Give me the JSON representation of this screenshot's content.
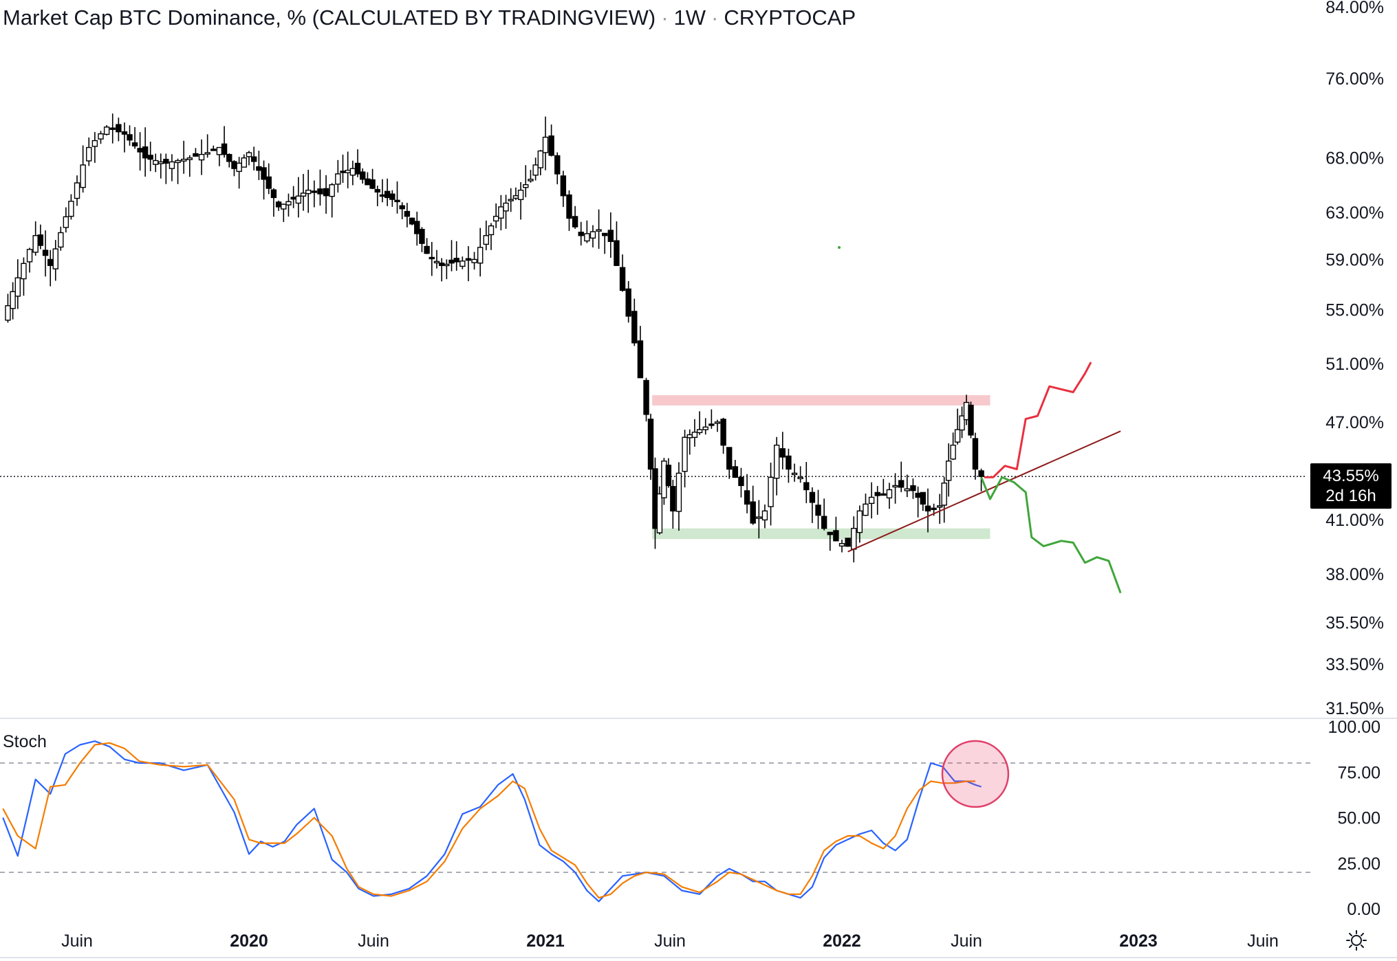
{
  "header": {
    "title": "Market Cap BTC Dominance, % (CALCULATED BY TRADINGVIEW)",
    "interval": "1W",
    "exchange": "CRYPTOCAP"
  },
  "price_badge": {
    "value": "43.55%",
    "countdown": "2d 16h"
  },
  "indicator": {
    "name": "Stoch"
  },
  "colors": {
    "candle": "#000000",
    "resistance_zone": "#f7c9cc",
    "support_zone": "#cfe8cf",
    "trendline": "#8b1a1a",
    "bull_path": "#e8303f",
    "bear_path": "#3fa63a",
    "stoch_k": "#2962ff",
    "stoch_d": "#f57c00",
    "highlight_circle": "#e0406a"
  },
  "chart_data": [
    {
      "type": "candlestick",
      "title": "Market Cap BTC Dominance, % (CALCULATED BY TRADINGVIEW)",
      "ylabel": "",
      "scale": "log",
      "ylim": [
        31.5,
        84.0
      ],
      "y_ticks": [
        "84.00%",
        "76.00%",
        "68.00%",
        "63.00%",
        "59.00%",
        "55.00%",
        "51.00%",
        "47.00%",
        "41.00%",
        "38.00%",
        "35.50%",
        "33.50%",
        "31.50%"
      ],
      "x_ticks": [
        "Juin",
        "2020",
        "Juin",
        "2021",
        "Juin",
        "2022",
        "Juin",
        "2023",
        "Juin"
      ],
      "x_tick_dates": [
        2019.42,
        2020.0,
        2020.42,
        2021.0,
        2021.42,
        2022.0,
        2022.42,
        2023.0,
        2023.42
      ],
      "current_value": 43.55,
      "close_path": [
        [
          2019.17,
          54.2
        ],
        [
          2019.22,
          57.5
        ],
        [
          2019.28,
          61.0
        ],
        [
          2019.33,
          58.5
        ],
        [
          2019.4,
          64.0
        ],
        [
          2019.46,
          69.0
        ],
        [
          2019.52,
          71.0
        ],
        [
          2019.58,
          70.3
        ],
        [
          2019.65,
          68.0
        ],
        [
          2019.72,
          67.5
        ],
        [
          2019.8,
          68.0
        ],
        [
          2019.86,
          68.5
        ],
        [
          2019.9,
          69.0
        ],
        [
          2019.95,
          67.0
        ],
        [
          2020.0,
          68.5
        ],
        [
          2020.05,
          66.0
        ],
        [
          2020.1,
          63.5
        ],
        [
          2020.15,
          64.2
        ],
        [
          2020.2,
          65.0
        ],
        [
          2020.26,
          64.5
        ],
        [
          2020.3,
          66.5
        ],
        [
          2020.35,
          67.0
        ],
        [
          2020.4,
          65.5
        ],
        [
          2020.45,
          64.5
        ],
        [
          2020.5,
          64.0
        ],
        [
          2020.55,
          62.0
        ],
        [
          2020.6,
          59.5
        ],
        [
          2020.65,
          58.5
        ],
        [
          2020.7,
          58.8
        ],
        [
          2020.76,
          59.0
        ],
        [
          2020.8,
          61.0
        ],
        [
          2020.85,
          63.5
        ],
        [
          2020.9,
          64.5
        ],
        [
          2020.95,
          66.0
        ],
        [
          2021.0,
          70.0
        ],
        [
          2021.04,
          66.5
        ],
        [
          2021.08,
          62.5
        ],
        [
          2021.12,
          61.0
        ],
        [
          2021.18,
          61.5
        ],
        [
          2021.22,
          60.5
        ],
        [
          2021.26,
          56.5
        ],
        [
          2021.3,
          52.5
        ],
        [
          2021.34,
          47.5
        ],
        [
          2021.37,
          40.5
        ],
        [
          2021.4,
          44.5
        ],
        [
          2021.43,
          41.5
        ],
        [
          2021.47,
          46.0
        ],
        [
          2021.52,
          46.5
        ],
        [
          2021.58,
          47.0
        ],
        [
          2021.62,
          44.0
        ],
        [
          2021.66,
          43.0
        ],
        [
          2021.7,
          40.8
        ],
        [
          2021.74,
          41.5
        ],
        [
          2021.78,
          45.5
        ],
        [
          2021.82,
          44.0
        ],
        [
          2021.86,
          43.5
        ],
        [
          2021.9,
          42.0
        ],
        [
          2021.94,
          40.5
        ],
        [
          2021.98,
          39.8
        ],
        [
          2022.02,
          39.5
        ],
        [
          2022.06,
          41.5
        ],
        [
          2022.1,
          42.3
        ],
        [
          2022.14,
          42.5
        ],
        [
          2022.18,
          43.0
        ],
        [
          2022.24,
          42.7
        ],
        [
          2022.29,
          41.5
        ],
        [
          2022.33,
          41.8
        ],
        [
          2022.36,
          44.5
        ],
        [
          2022.39,
          46.5
        ],
        [
          2022.42,
          48.3
        ],
        [
          2022.45,
          44.0
        ],
        [
          2022.47,
          43.55
        ]
      ],
      "resistance_zone": {
        "from": 2021.36,
        "to": 2022.5,
        "low": 48.1,
        "high": 48.8
      },
      "support_zone": {
        "from": 2021.36,
        "to": 2022.5,
        "low": 39.9,
        "high": 40.5
      },
      "trendline": {
        "from": [
          2022.02,
          39.2
        ],
        "to": [
          2022.94,
          46.4
        ]
      },
      "bull_projection": [
        [
          2022.48,
          43.5
        ],
        [
          2022.51,
          43.5
        ],
        [
          2022.55,
          44.2
        ],
        [
          2022.59,
          44.0
        ],
        [
          2022.62,
          47.2
        ],
        [
          2022.66,
          47.4
        ],
        [
          2022.7,
          49.4
        ],
        [
          2022.74,
          49.2
        ],
        [
          2022.78,
          49.0
        ],
        [
          2022.82,
          50.3
        ],
        [
          2022.84,
          51.1
        ]
      ],
      "bear_projection": [
        [
          2022.47,
          43.5
        ],
        [
          2022.5,
          42.2
        ],
        [
          2022.54,
          43.5
        ],
        [
          2022.58,
          43.2
        ],
        [
          2022.62,
          42.6
        ],
        [
          2022.64,
          40.0
        ],
        [
          2022.68,
          39.5
        ],
        [
          2022.74,
          39.8
        ],
        [
          2022.78,
          39.7
        ],
        [
          2022.82,
          38.6
        ],
        [
          2022.86,
          38.9
        ],
        [
          2022.9,
          38.7
        ],
        [
          2022.94,
          37.0
        ]
      ]
    },
    {
      "type": "line",
      "title": "Stoch",
      "ylim": [
        0,
        100
      ],
      "y_ticks": [
        "100.00",
        "75.00",
        "50.00",
        "25.00",
        "0.00"
      ],
      "levels": [
        80,
        20
      ],
      "series": [
        {
          "name": "",
          "color": "#2962ff",
          "x": [
            2019.17,
            2019.22,
            2019.28,
            2019.33,
            2019.38,
            2019.43,
            2019.48,
            2019.53,
            2019.58,
            2019.63,
            2019.7,
            2019.78,
            2019.86,
            2019.95,
            2020.0,
            2020.04,
            2020.08,
            2020.12,
            2020.16,
            2020.22,
            2020.28,
            2020.33,
            2020.37,
            2020.42,
            2020.48,
            2020.54,
            2020.6,
            2020.66,
            2020.72,
            2020.78,
            2020.84,
            2020.89,
            2020.93,
            2020.98,
            2021.02,
            2021.06,
            2021.1,
            2021.14,
            2021.18,
            2021.22,
            2021.26,
            2021.3,
            2021.34,
            2021.4,
            2021.46,
            2021.52,
            2021.58,
            2021.62,
            2021.66,
            2021.7,
            2021.74,
            2021.78,
            2021.82,
            2021.86,
            2021.9,
            2021.94,
            2021.98,
            2022.02,
            2022.06,
            2022.1,
            2022.14,
            2022.18,
            2022.22,
            2022.26,
            2022.3,
            2022.34,
            2022.38,
            2022.42,
            2022.45,
            2022.47
          ],
          "values": [
            50,
            29,
            71,
            63,
            85,
            90,
            92,
            89,
            82,
            80,
            80,
            76,
            79,
            53,
            30,
            37,
            34,
            37,
            46,
            55,
            27,
            20,
            11,
            7,
            8,
            11,
            18,
            30,
            52,
            56,
            68,
            74,
            60,
            35,
            30,
            26,
            20,
            10,
            4,
            11,
            18,
            19,
            20,
            18,
            10,
            8,
            18,
            22,
            19,
            15,
            15,
            10,
            8,
            6,
            12,
            28,
            35,
            38,
            41,
            43,
            36,
            32,
            38,
            60,
            80,
            78,
            70,
            70,
            68,
            67
          ]
        },
        {
          "name": "",
          "color": "#f57c00",
          "x": [
            2019.17,
            2019.22,
            2019.28,
            2019.33,
            2019.38,
            2019.43,
            2019.48,
            2019.53,
            2019.58,
            2019.63,
            2019.7,
            2019.78,
            2019.86,
            2019.95,
            2020.0,
            2020.04,
            2020.08,
            2020.12,
            2020.16,
            2020.22,
            2020.28,
            2020.33,
            2020.37,
            2020.42,
            2020.48,
            2020.54,
            2020.6,
            2020.66,
            2020.72,
            2020.78,
            2020.84,
            2020.89,
            2020.93,
            2020.98,
            2021.02,
            2021.06,
            2021.1,
            2021.14,
            2021.18,
            2021.22,
            2021.26,
            2021.3,
            2021.34,
            2021.4,
            2021.46,
            2021.52,
            2021.58,
            2021.62,
            2021.66,
            2021.7,
            2021.74,
            2021.78,
            2021.82,
            2021.86,
            2021.9,
            2021.94,
            2021.98,
            2022.02,
            2022.06,
            2022.1,
            2022.14,
            2022.18,
            2022.22,
            2022.26,
            2022.3,
            2022.34,
            2022.38,
            2022.42,
            2022.45
          ],
          "values": [
            55,
            40,
            33,
            67,
            68,
            80,
            90,
            91,
            88,
            81,
            79,
            78,
            79,
            60,
            38,
            36,
            36,
            36,
            41,
            50,
            40,
            22,
            12,
            8,
            7,
            10,
            15,
            26,
            44,
            55,
            62,
            70,
            66,
            44,
            32,
            28,
            24,
            14,
            6,
            8,
            14,
            18,
            20,
            19,
            12,
            9,
            15,
            20,
            19,
            16,
            13,
            10,
            8,
            8,
            18,
            32,
            37,
            40,
            40,
            36,
            33,
            40,
            55,
            65,
            70,
            69,
            69,
            70,
            70
          ]
        }
      ],
      "annotation": {
        "type": "circle",
        "x": 2022.45,
        "y": 74
      }
    }
  ]
}
